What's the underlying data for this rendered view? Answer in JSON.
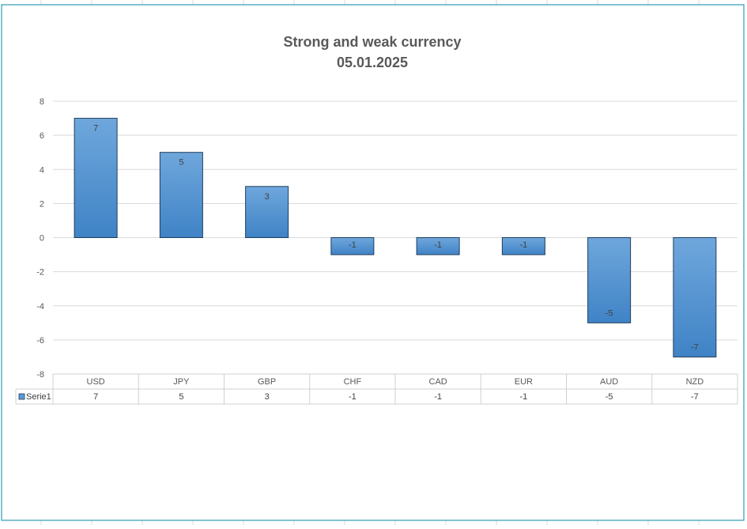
{
  "chart_data": {
    "type": "bar",
    "title": "Strong and weak currency",
    "subtitle": "05.01.2025",
    "categories": [
      "USD",
      "JPY",
      "GBP",
      "CHF",
      "CAD",
      "EUR",
      "AUD",
      "NZD"
    ],
    "series": [
      {
        "name": "Serie1",
        "values": [
          7,
          5,
          3,
          -1,
          -1,
          -1,
          -5,
          -7
        ]
      }
    ],
    "yticks": [
      "8",
      "6",
      "4",
      "2",
      "0",
      "-2",
      "-4",
      "-6",
      "-8"
    ],
    "ylim": [
      -8,
      8
    ],
    "grid": true,
    "legend": "data-table-left",
    "data_table": true,
    "bar_color": "#5b9bd5",
    "bar_color_light": "#6fa7dc",
    "bar_color_dark": "#3f83c6",
    "bar_outline": "#1f3d5c"
  }
}
